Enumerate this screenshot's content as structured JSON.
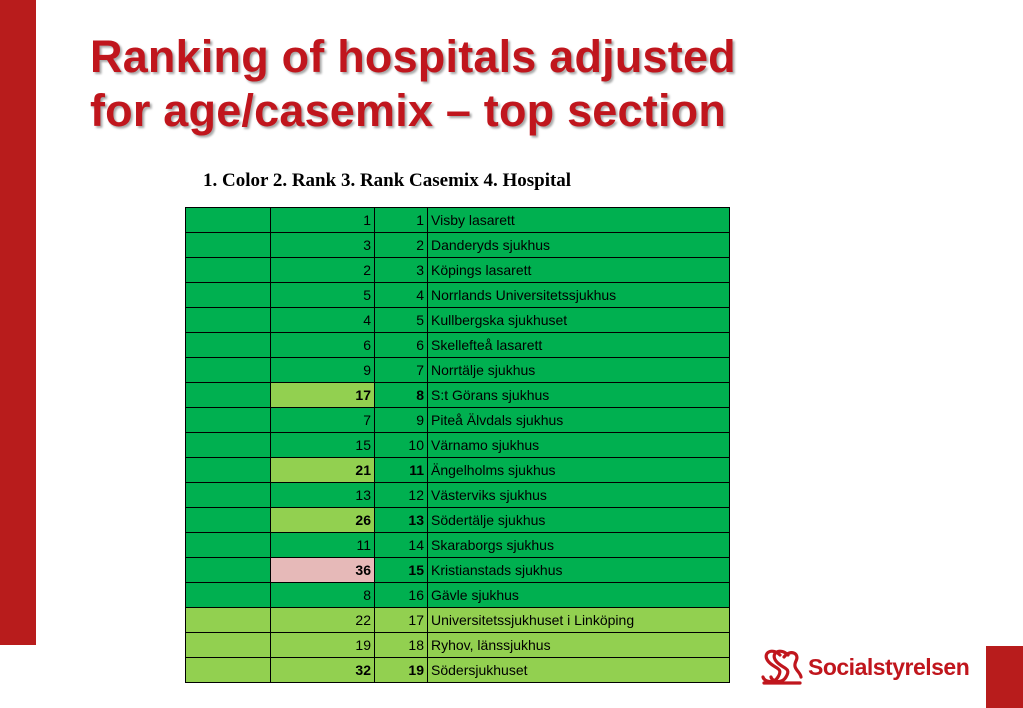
{
  "title": {
    "line1": "Ranking of hospitals adjusted",
    "line2": "for age/casemix – top section"
  },
  "subtitle": "1. Color  2. Rank  3. Rank Casemix  4. Hospital",
  "colors": {
    "dark_green": "#00b050",
    "light_green": "#92d050",
    "pink": "#e6b9b8",
    "brand_red": "#c0161d"
  },
  "rows": [
    {
      "rank": "1",
      "casemix": "1",
      "hospital": "Visby lasarett",
      "color": "dark_green",
      "rank_color": "dark_green",
      "bold": false
    },
    {
      "rank": "3",
      "casemix": "2",
      "hospital": "Danderyds sjukhus",
      "color": "dark_green",
      "rank_color": "dark_green",
      "bold": false
    },
    {
      "rank": "2",
      "casemix": "3",
      "hospital": "Köpings lasarett",
      "color": "dark_green",
      "rank_color": "dark_green",
      "bold": false
    },
    {
      "rank": "5",
      "casemix": "4",
      "hospital": "Norrlands Universitetssjukhus",
      "color": "dark_green",
      "rank_color": "dark_green",
      "bold": false
    },
    {
      "rank": "4",
      "casemix": "5",
      "hospital": "Kullbergska sjukhuset",
      "color": "dark_green",
      "rank_color": "dark_green",
      "bold": false
    },
    {
      "rank": "6",
      "casemix": "6",
      "hospital": "Skellefteå lasarett",
      "color": "dark_green",
      "rank_color": "dark_green",
      "bold": false
    },
    {
      "rank": "9",
      "casemix": "7",
      "hospital": "Norrtälje sjukhus",
      "color": "dark_green",
      "rank_color": "dark_green",
      "bold": false
    },
    {
      "rank": "17",
      "casemix": "8",
      "hospital": "S:t Görans sjukhus",
      "color": "dark_green",
      "rank_color": "light_green",
      "bold": true
    },
    {
      "rank": "7",
      "casemix": "9",
      "hospital": "Piteå Älvdals sjukhus",
      "color": "dark_green",
      "rank_color": "dark_green",
      "bold": false
    },
    {
      "rank": "15",
      "casemix": "10",
      "hospital": "Värnamo sjukhus",
      "color": "dark_green",
      "rank_color": "dark_green",
      "bold": false
    },
    {
      "rank": "21",
      "casemix": "11",
      "hospital": "Ängelholms sjukhus",
      "color": "dark_green",
      "rank_color": "light_green",
      "bold": true
    },
    {
      "rank": "13",
      "casemix": "12",
      "hospital": "Västerviks sjukhus",
      "color": "dark_green",
      "rank_color": "dark_green",
      "bold": false
    },
    {
      "rank": "26",
      "casemix": "13",
      "hospital": "Södertälje sjukhus",
      "color": "dark_green",
      "rank_color": "light_green",
      "bold": true
    },
    {
      "rank": "11",
      "casemix": "14",
      "hospital": "Skaraborgs sjukhus",
      "color": "dark_green",
      "rank_color": "dark_green",
      "bold": false
    },
    {
      "rank": "36",
      "casemix": "15",
      "hospital": "Kristianstads sjukhus",
      "color": "dark_green",
      "rank_color": "pink",
      "bold": true
    },
    {
      "rank": "8",
      "casemix": "16",
      "hospital": "Gävle sjukhus",
      "color": "dark_green",
      "rank_color": "dark_green",
      "bold": false
    },
    {
      "rank": "22",
      "casemix": "17",
      "hospital": "Universitetssjukhuset i Linköping",
      "color": "light_green",
      "rank_color": "light_green",
      "bold": false
    },
    {
      "rank": "19",
      "casemix": "18",
      "hospital": "Ryhov, länssjukhus",
      "color": "light_green",
      "rank_color": "light_green",
      "bold": false
    },
    {
      "rank": "32",
      "casemix": "19",
      "hospital": "Södersjukhuset",
      "color": "light_green",
      "rank_color": "light_green",
      "bold": true
    }
  ],
  "logo": {
    "text": "Socialstyrelsen",
    "icon": "socialstyrelsen-emblem-icon"
  }
}
